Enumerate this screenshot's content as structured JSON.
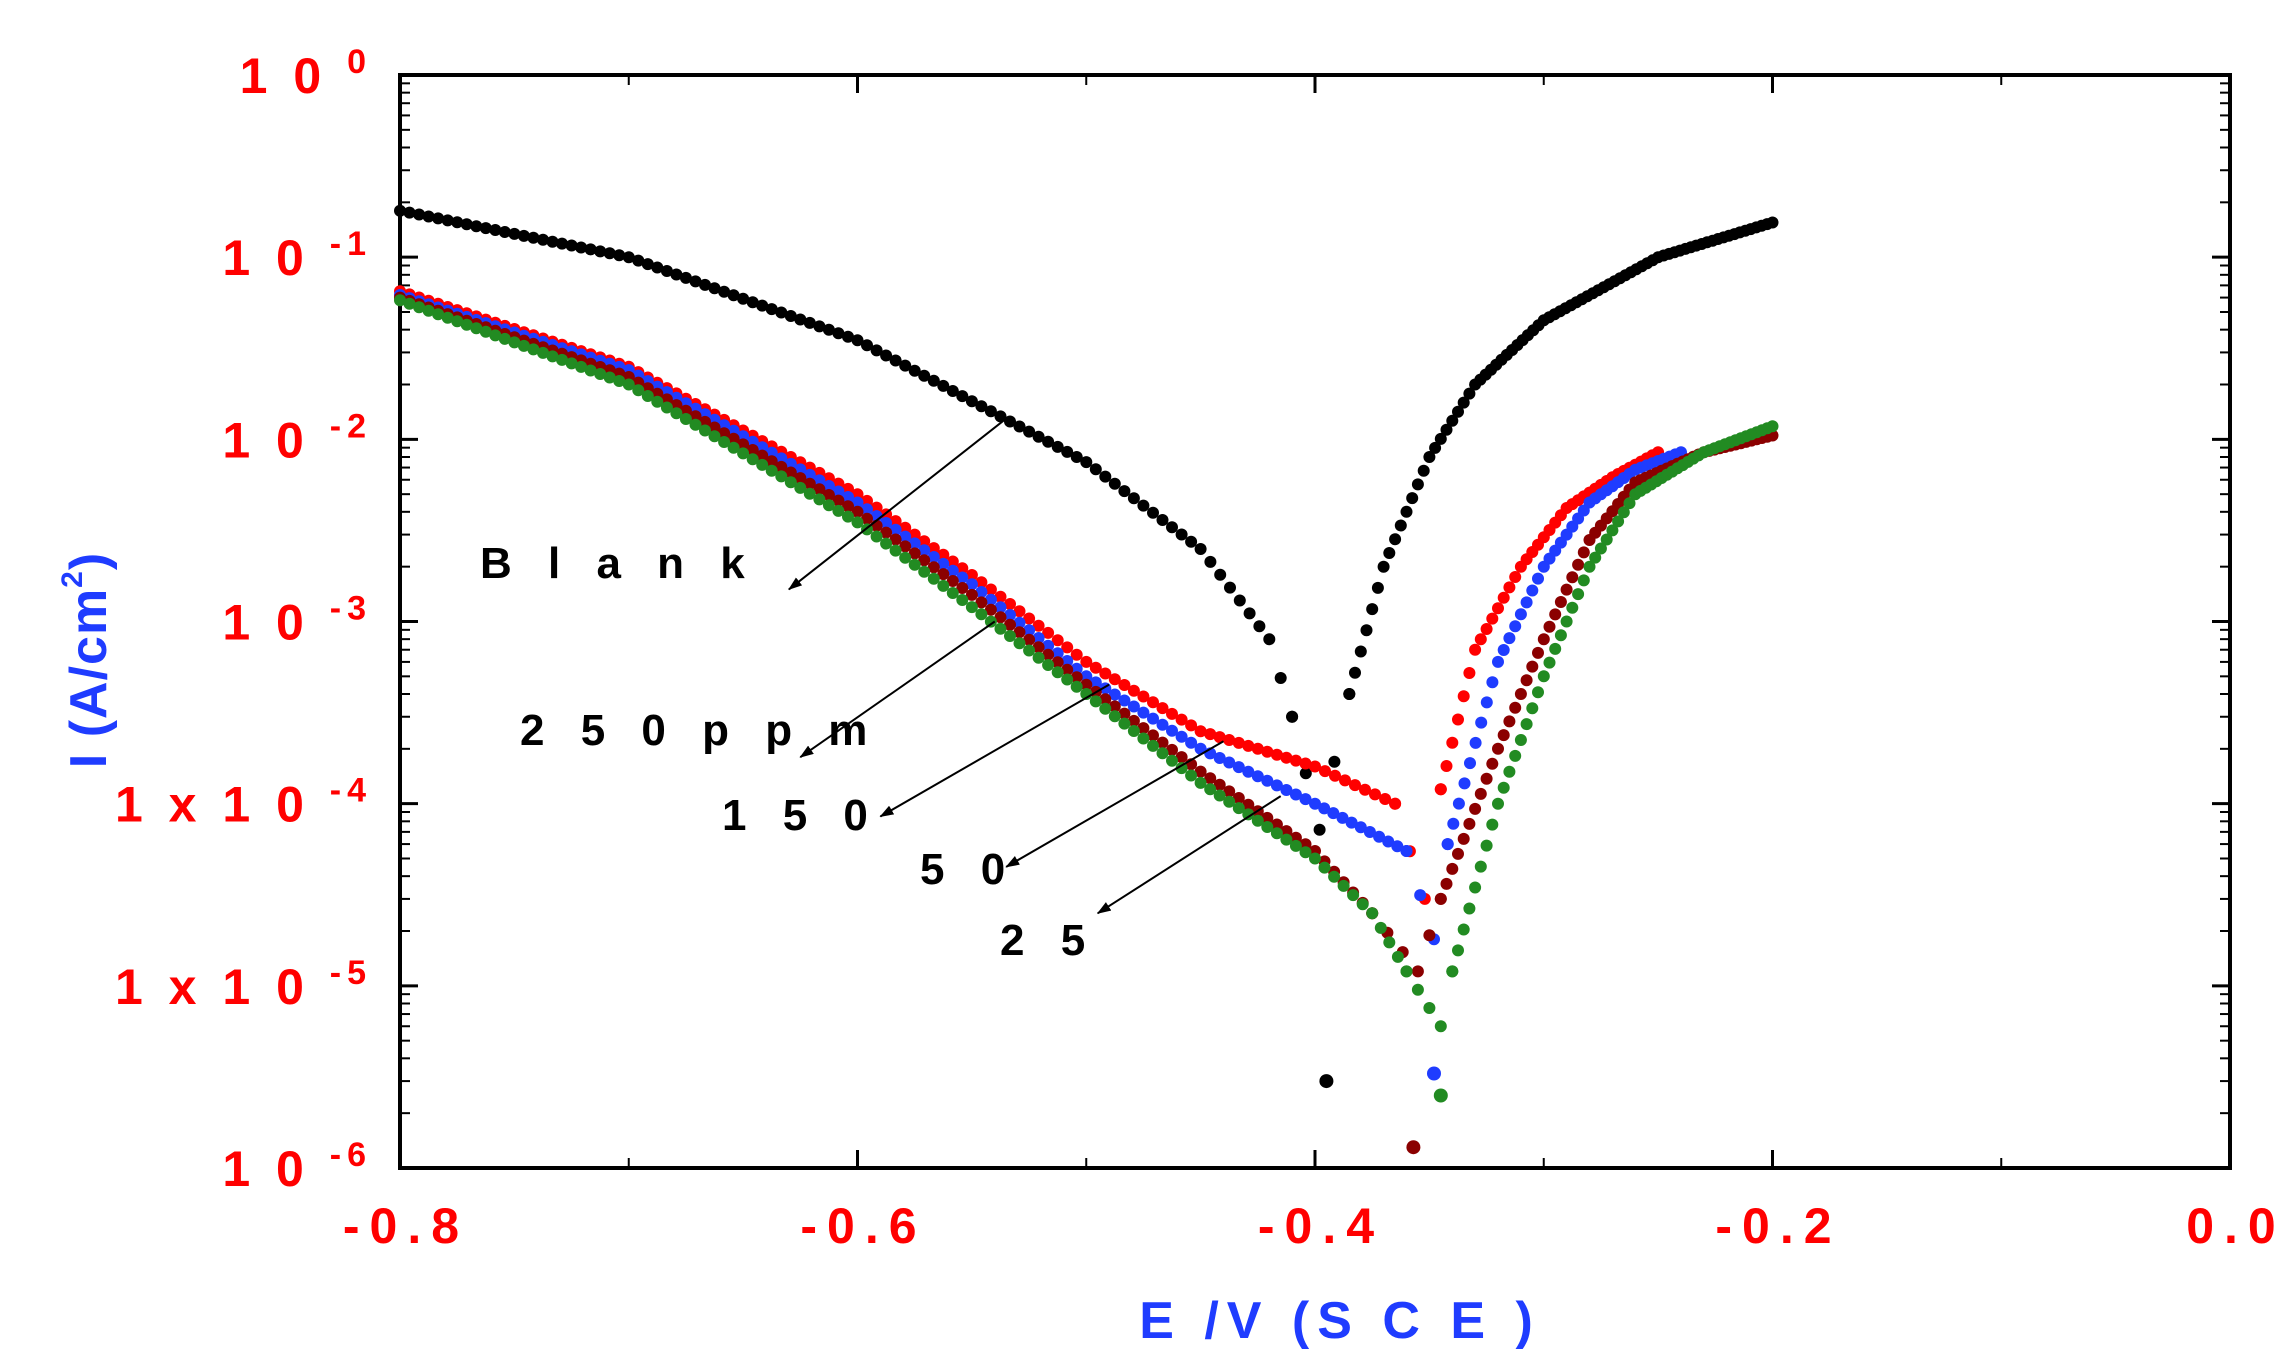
{
  "chart_data": {
    "type": "scatter",
    "title": "",
    "xlabel": "E /V  (S C E )",
    "ylabel_main": "I (A/cm",
    "ylabel_sup": "2",
    "ylabel_end": ")",
    "xlim": [
      -0.8,
      0.0
    ],
    "ylim_log10": [
      -6,
      0
    ],
    "yscale": "log",
    "x_ticks": [
      {
        "value": -0.8,
        "label": "-0.8"
      },
      {
        "value": -0.6,
        "label": "-0.6"
      },
      {
        "value": -0.4,
        "label": "-0.4"
      },
      {
        "value": -0.2,
        "label": "-0.2"
      },
      {
        "value": 0.0,
        "label": "0.0"
      }
    ],
    "y_ticks": [
      {
        "exp": 0,
        "base": "1 0",
        "sup": "0"
      },
      {
        "exp": -1,
        "base": "1 0",
        "sup": "-1"
      },
      {
        "exp": -2,
        "base": "1 0",
        "sup": "-2"
      },
      {
        "exp": -3,
        "base": "1 0",
        "sup": "-3"
      },
      {
        "exp": -4,
        "base": "1 x 1 0",
        "sup": "-4"
      },
      {
        "exp": -5,
        "base": "1 x 1 0",
        "sup": "-5"
      },
      {
        "exp": -6,
        "base": "1 0",
        "sup": "-6"
      }
    ],
    "series": [
      {
        "name": "Blank",
        "color": "#000000",
        "Ecorr": -0.398,
        "i0": 0.00012,
        "cathodic": [
          [
            -0.8,
            0.18
          ],
          [
            -0.7,
            0.1
          ],
          [
            -0.6,
            0.035
          ],
          [
            -0.5,
            0.0075
          ],
          [
            -0.45,
            0.0025
          ],
          [
            -0.42,
            0.0008
          ],
          [
            -0.41,
            0.0003
          ]
        ],
        "anodic": [
          [
            -0.385,
            0.0004
          ],
          [
            -0.37,
            0.002
          ],
          [
            -0.35,
            0.008
          ],
          [
            -0.33,
            0.02
          ],
          [
            -0.3,
            0.045
          ],
          [
            -0.25,
            0.1
          ],
          [
            -0.2,
            0.155
          ]
        ],
        "isolated": [
          [
            -0.395,
            3e-06
          ]
        ]
      },
      {
        "name": "250ppm",
        "color": "#ff0000",
        "Ecorr": -0.352,
        "i0": 5e-05,
        "cathodic": [
          [
            -0.8,
            0.065
          ],
          [
            -0.7,
            0.025
          ],
          [
            -0.6,
            0.005
          ],
          [
            -0.55,
            0.0018
          ],
          [
            -0.5,
            0.0006
          ],
          [
            -0.45,
            0.00025
          ],
          [
            -0.4,
            0.00016
          ],
          [
            -0.365,
            0.0001
          ]
        ],
        "anodic": [
          [
            -0.345,
            0.00012
          ],
          [
            -0.33,
            0.0007
          ],
          [
            -0.31,
            0.002
          ],
          [
            -0.29,
            0.0042
          ],
          [
            -0.27,
            0.0062
          ],
          [
            -0.25,
            0.0085
          ]
        ],
        "isolated": []
      },
      {
        "name": "150",
        "color": "#1f3cff",
        "Ecorr": -0.348,
        "i0": 3e-05,
        "cathodic": [
          [
            -0.8,
            0.062
          ],
          [
            -0.7,
            0.024
          ],
          [
            -0.6,
            0.0045
          ],
          [
            -0.55,
            0.0016
          ],
          [
            -0.5,
            0.0005
          ],
          [
            -0.45,
            0.0002
          ],
          [
            -0.4,
            0.0001
          ],
          [
            -0.36,
            5.5e-05
          ]
        ],
        "anodic": [
          [
            -0.342,
            6e-05
          ],
          [
            -0.32,
            0.0006
          ],
          [
            -0.3,
            0.002
          ],
          [
            -0.28,
            0.0045
          ],
          [
            -0.26,
            0.0068
          ],
          [
            -0.24,
            0.0085
          ]
        ],
        "isolated": [
          [
            -0.348,
            3.3e-06
          ]
        ]
      },
      {
        "name": "50",
        "color": "#8b0000",
        "Ecorr": -0.355,
        "i0": 2e-05,
        "cathodic": [
          [
            -0.8,
            0.06
          ],
          [
            -0.7,
            0.022
          ],
          [
            -0.6,
            0.004
          ],
          [
            -0.55,
            0.0014
          ],
          [
            -0.5,
            0.00045
          ],
          [
            -0.45,
            0.00015
          ],
          [
            -0.4,
            5.5e-05
          ],
          [
            -0.375,
            2.5e-05
          ]
        ],
        "anodic": [
          [
            -0.345,
            3e-05
          ],
          [
            -0.32,
            0.0002
          ],
          [
            -0.3,
            0.0008
          ],
          [
            -0.28,
            0.0028
          ],
          [
            -0.26,
            0.0058
          ],
          [
            -0.23,
            0.0085
          ],
          [
            -0.2,
            0.0105
          ]
        ],
        "isolated": [
          [
            -0.357,
            1.3e-06
          ]
        ]
      },
      {
        "name": "25",
        "color": "#228b22",
        "Ecorr": -0.345,
        "i0": 1e-05,
        "cathodic": [
          [
            -0.8,
            0.058
          ],
          [
            -0.7,
            0.02
          ],
          [
            -0.6,
            0.0035
          ],
          [
            -0.55,
            0.0012
          ],
          [
            -0.5,
            0.0004
          ],
          [
            -0.45,
            0.00013
          ],
          [
            -0.4,
            5e-05
          ],
          [
            -0.375,
            2.5e-05
          ],
          [
            -0.36,
            1.2e-05
          ]
        ],
        "anodic": [
          [
            -0.34,
            1.2e-05
          ],
          [
            -0.32,
            0.0001
          ],
          [
            -0.3,
            0.0005
          ],
          [
            -0.28,
            0.002
          ],
          [
            -0.26,
            0.005
          ],
          [
            -0.23,
            0.0085
          ],
          [
            -0.2,
            0.0118
          ]
        ],
        "isolated": [
          [
            -0.345,
            2.5e-06
          ]
        ]
      }
    ],
    "annotations": [
      {
        "label": "B l a n k",
        "series": "Blank",
        "from": [
          -0.535,
          0.013
        ],
        "to": [
          -0.63,
          0.0015
        ]
      },
      {
        "label": "2 5 0 p p m",
        "series": "250ppm",
        "from": [
          -0.54,
          0.001
        ],
        "to": [
          -0.625,
          0.00018
        ]
      },
      {
        "label": "1 5 0",
        "series": "150",
        "from": [
          -0.49,
          0.00045
        ],
        "to": [
          -0.59,
          8.5e-05
        ]
      },
      {
        "label": "5 0",
        "series": "50",
        "from": [
          -0.44,
          0.00022
        ],
        "to": [
          -0.535,
          4.5e-05
        ]
      },
      {
        "label": "2 5",
        "series": "25",
        "from": [
          -0.415,
          0.00011
        ],
        "to": [
          -0.495,
          2.5e-05
        ]
      }
    ]
  }
}
